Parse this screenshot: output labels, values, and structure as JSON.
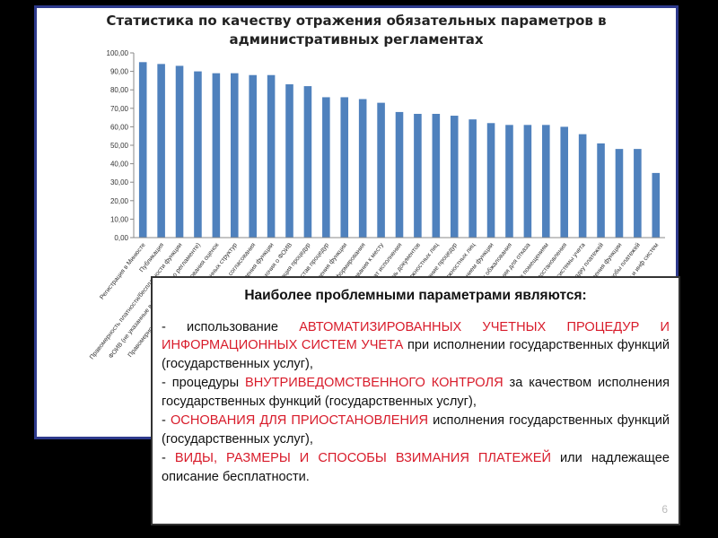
{
  "chart_data": {
    "type": "bar",
    "title_line1": "Статистика по качеству отражения обязательных параметров в",
    "title_line2": "административных регламентах",
    "xlabel": "",
    "ylabel": "",
    "ylim": [
      0,
      100
    ],
    "yticks": [
      "0,00",
      "10,00",
      "20,00",
      "30,00",
      "40,00",
      "50,00",
      "60,00",
      "70,00",
      "80,00",
      "90,00",
      "100,00"
    ],
    "grid": false,
    "bar_color": "#4f81bd",
    "categories": [
      "Регистрация в Минюсте",
      "Публикация",
      "Правомерность платности/бесплатности функции",
      "ФОИВ (не указанные в Положении о регламенте)",
      "Правомерность участия и использования оценок",
      "Участие негосударственных структур",
      "Прочие согласования",
      "Основание предоставления функции",
      "Полномочия о ФОИВ",
      "Регламентация процедур",
      "Состав процедур",
      "Сроки исполнения функции",
      "Порядок информирования",
      "Требования к месту",
      "Результат исполнения",
      "Перечень документов",
      "Полномочия должностных лиц",
      "Описание процедур",
      "Ответственность должностных лиц",
      "Контроль за исполнением функции",
      "Порядок обжалования",
      "Основания для отказа",
      "Требования к помещениям",
      "Перечень оснований приостановления",
      "Информационные системы учета",
      "Требования к порядку платежей",
      "Основания для приостановления функции",
      "Виды, размеры и способы платежей",
      "Автоматизация учетных процедур и инф систем"
    ],
    "values": [
      95,
      94,
      93,
      90,
      89,
      89,
      88,
      88,
      83,
      82,
      76,
      76,
      75,
      73,
      68,
      67,
      67,
      66,
      64,
      62,
      61,
      61,
      61,
      60,
      56,
      51,
      48,
      48,
      35
    ]
  },
  "info": {
    "heading": "Наиболее проблемными параметрами являются:",
    "items": [
      {
        "pre": "-  использование ",
        "hl": "АВТОМАТИЗИРОВАННЫХ УЧЕТНЫХ ПРОЦЕДУР И ИНФОРМАЦИОННЫХ СИСТЕМ УЧЕТА",
        "post": " при исполнении государственных функций (государственных услуг),"
      },
      {
        "pre": "- процедуры ",
        "hl": "ВНУТРИВЕДОМСТВЕННОГО КОНТРОЛЯ",
        "post": " за качеством исполнения государственных функций (государственных услуг),"
      },
      {
        "pre": "- ",
        "hl": "ОСНОВАНИЯ ДЛЯ ПРИОСТАНОВЛЕНИЯ",
        "post": " исполнения государственных функций (государственных услуг),"
      },
      {
        "pre": "- ",
        "hl": "ВИДЫ, РАЗМЕРЫ И СПОСОБЫ ВЗИМАНИЯ ПЛАТЕЖЕЙ",
        "post": " или надлежащее описание бесплатности."
      }
    ]
  },
  "colors": {
    "frame_border": "#2e3a8c",
    "highlight": "#d81b2a"
  },
  "page_number": "6"
}
